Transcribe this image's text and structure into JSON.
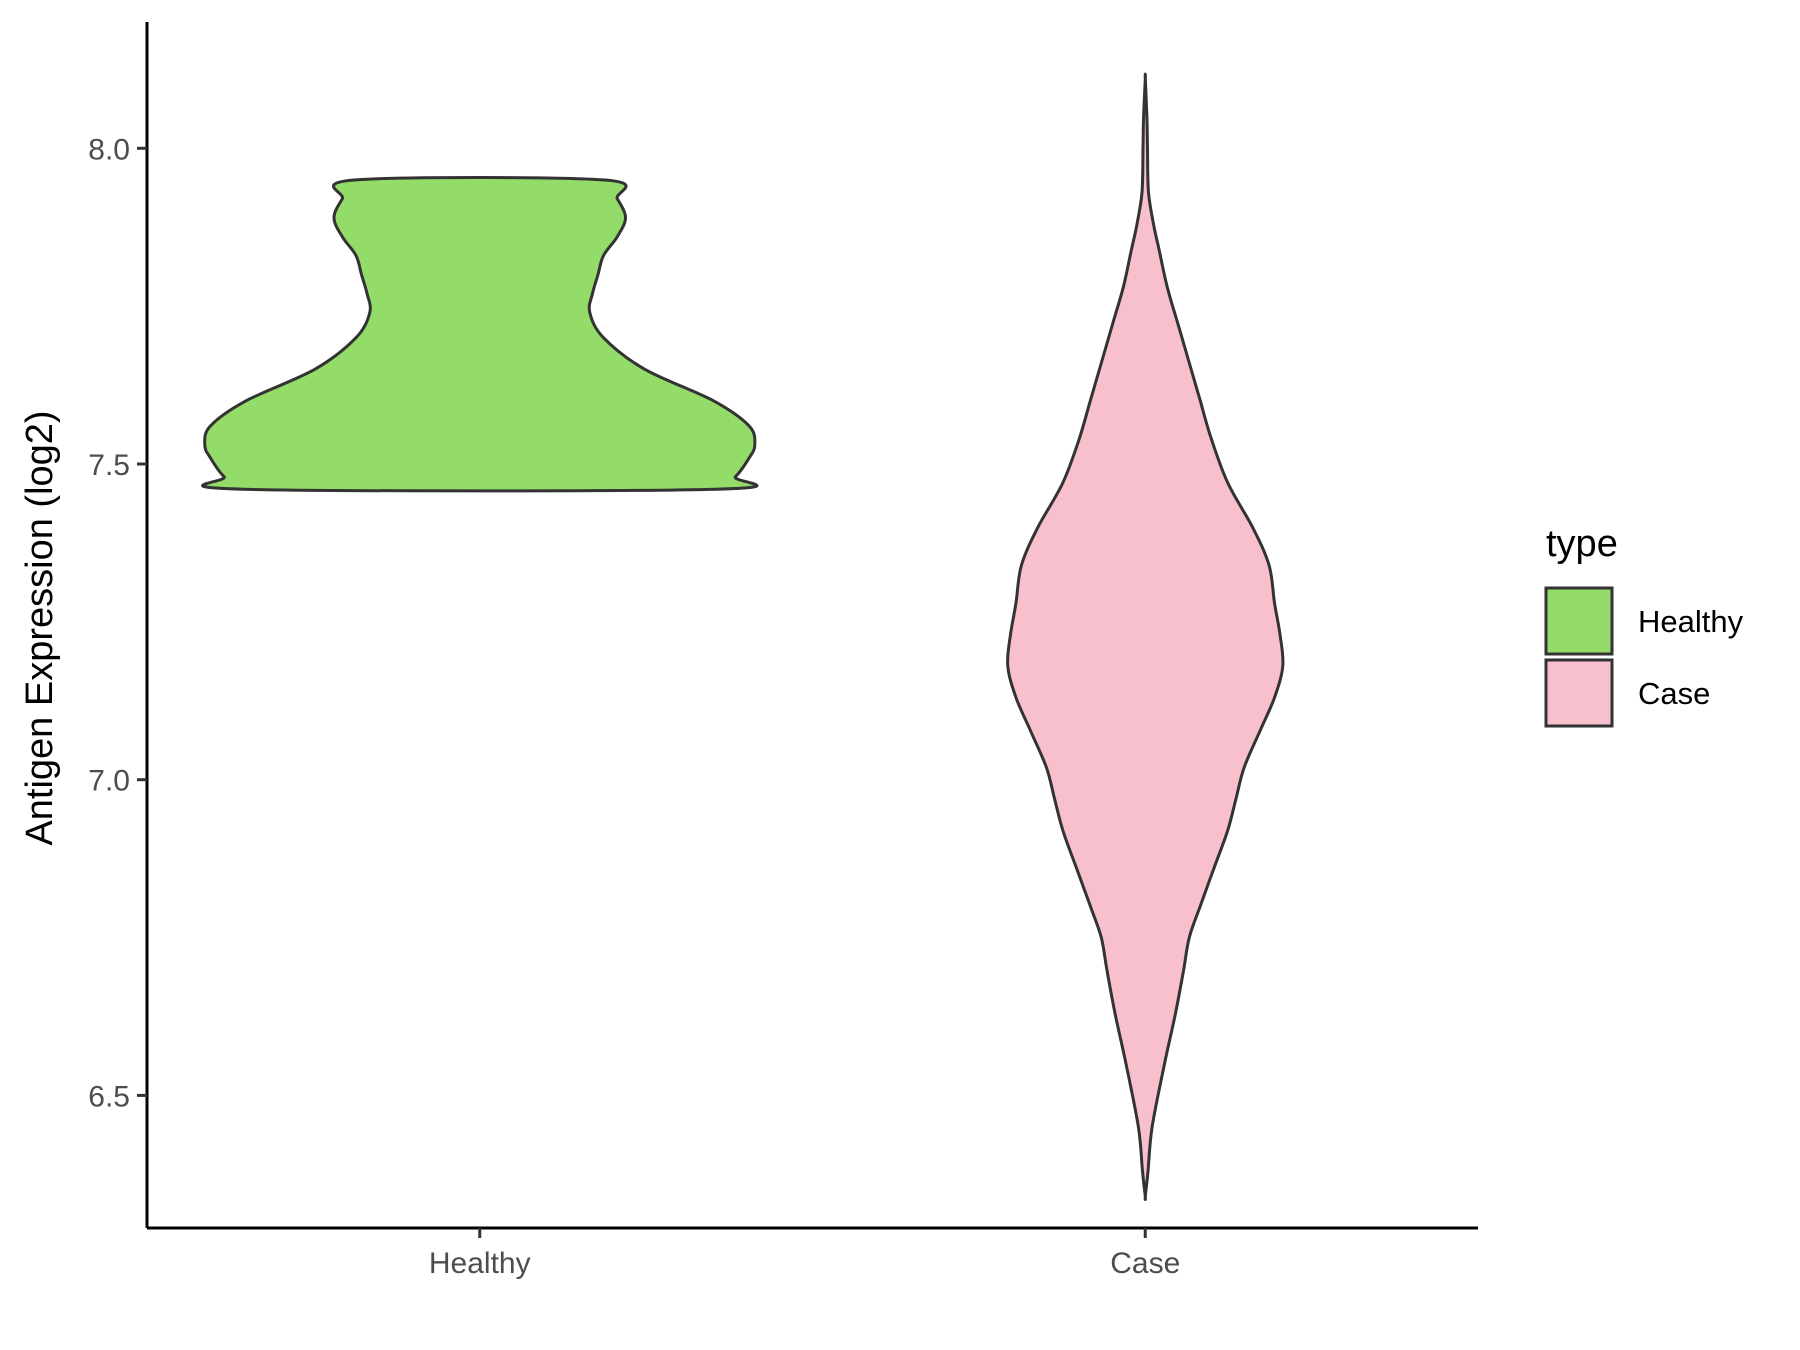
{
  "chart_data": {
    "type": "violin",
    "ylabel": "Antigen Expression (log2)",
    "xlabel": "",
    "categories": [
      "Healthy",
      "Case"
    ],
    "y_ticks": [
      "6.5",
      "7.0",
      "7.5",
      "8.0"
    ],
    "ylim": [
      6.29,
      8.2
    ],
    "grid": false,
    "legend": {
      "title": "type",
      "position": "right",
      "entries": [
        "Healthy",
        "Case"
      ]
    },
    "series": [
      {
        "name": "Healthy",
        "color": "#93dc6a",
        "outline": "#333333",
        "min": 7.46,
        "max": 7.95,
        "density_profile": [
          [
            7.46,
            0.86
          ],
          [
            7.48,
            0.93
          ],
          [
            7.51,
            0.98
          ],
          [
            7.53,
            1.0
          ],
          [
            7.56,
            0.98
          ],
          [
            7.6,
            0.85
          ],
          [
            7.65,
            0.6
          ],
          [
            7.7,
            0.45
          ],
          [
            7.74,
            0.4
          ],
          [
            7.77,
            0.41
          ],
          [
            7.8,
            0.43
          ],
          [
            7.83,
            0.45
          ],
          [
            7.86,
            0.5
          ],
          [
            7.89,
            0.53
          ],
          [
            7.92,
            0.5
          ],
          [
            7.95,
            0.45
          ]
        ]
      },
      {
        "name": "Case",
        "color": "#f8c0cc",
        "outline": "#333333",
        "min": 6.34,
        "max": 8.11,
        "density_profile": [
          [
            6.34,
            0.0
          ],
          [
            6.38,
            0.01
          ],
          [
            6.45,
            0.025
          ],
          [
            6.55,
            0.07
          ],
          [
            6.63,
            0.11
          ],
          [
            6.7,
            0.14
          ],
          [
            6.75,
            0.16
          ],
          [
            6.8,
            0.2
          ],
          [
            6.86,
            0.25
          ],
          [
            6.92,
            0.3
          ],
          [
            6.97,
            0.33
          ],
          [
            7.02,
            0.36
          ],
          [
            7.08,
            0.42
          ],
          [
            7.13,
            0.47
          ],
          [
            7.18,
            0.5
          ],
          [
            7.23,
            0.49
          ],
          [
            7.28,
            0.47
          ],
          [
            7.34,
            0.45
          ],
          [
            7.4,
            0.39
          ],
          [
            7.47,
            0.3
          ],
          [
            7.54,
            0.24
          ],
          [
            7.6,
            0.2
          ],
          [
            7.66,
            0.16
          ],
          [
            7.72,
            0.12
          ],
          [
            7.78,
            0.08
          ],
          [
            7.84,
            0.05
          ],
          [
            7.88,
            0.03
          ],
          [
            7.93,
            0.012
          ],
          [
            8.0,
            0.008
          ],
          [
            8.05,
            0.006
          ],
          [
            8.11,
            0.0
          ]
        ]
      }
    ]
  }
}
